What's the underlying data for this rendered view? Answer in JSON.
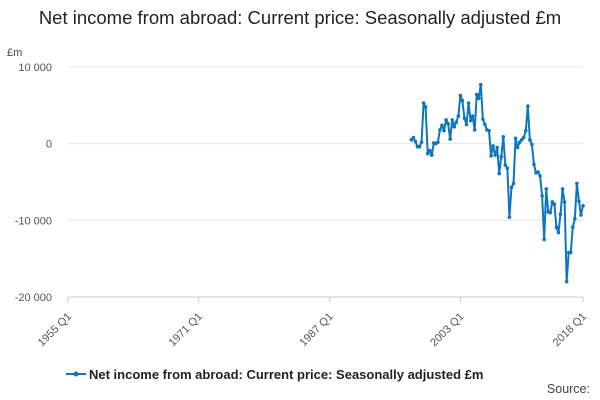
{
  "chart_data": {
    "type": "line",
    "title": "Net income from abroad: Current price: Seasonally adjusted £m",
    "ylabel": "£m",
    "xlabel": "",
    "x_unit": "quarter",
    "x_ticks": [
      "1955 Q1",
      "1971 Q1",
      "1987 Q1",
      "2003 Q1",
      "2018 Q1"
    ],
    "y_ticks": [
      "10 000",
      "0",
      "-10 000",
      "-20 000"
    ],
    "y_tick_values": [
      10000,
      0,
      -10000,
      -20000
    ],
    "xlim": [
      "1955 Q1",
      "2018 Q1"
    ],
    "ylim": [
      -20000,
      10000
    ],
    "grid": "horizontal",
    "legend_position": "bottom",
    "source_label": "Source:",
    "color": "#0d76bd",
    "series": [
      {
        "name": "Net income from abroad: Current price: Seasonally adjusted £m",
        "x": [
          "1997 Q1",
          "1997 Q2",
          "1997 Q3",
          "1997 Q4",
          "1998 Q1",
          "1998 Q2",
          "1998 Q3",
          "1998 Q4",
          "1999 Q1",
          "1999 Q2",
          "1999 Q3",
          "1999 Q4",
          "2000 Q1",
          "2000 Q2",
          "2000 Q3",
          "2000 Q4",
          "2001 Q1",
          "2001 Q2",
          "2001 Q3",
          "2001 Q4",
          "2002 Q1",
          "2002 Q2",
          "2002 Q3",
          "2002 Q4",
          "2003 Q1",
          "2003 Q2",
          "2003 Q3",
          "2003 Q4",
          "2004 Q1",
          "2004 Q2",
          "2004 Q3",
          "2004 Q4",
          "2005 Q1",
          "2005 Q2",
          "2005 Q3",
          "2005 Q4",
          "2006 Q1",
          "2006 Q2",
          "2006 Q3",
          "2006 Q4",
          "2007 Q1",
          "2007 Q2",
          "2007 Q3",
          "2007 Q4",
          "2008 Q1",
          "2008 Q2",
          "2008 Q3",
          "2008 Q4",
          "2009 Q1",
          "2009 Q2",
          "2009 Q3",
          "2009 Q4",
          "2010 Q1",
          "2010 Q2",
          "2010 Q3",
          "2010 Q4",
          "2011 Q1",
          "2011 Q2",
          "2011 Q3",
          "2011 Q4",
          "2012 Q1",
          "2012 Q2",
          "2012 Q3",
          "2012 Q4",
          "2013 Q1",
          "2013 Q2",
          "2013 Q3",
          "2013 Q4",
          "2014 Q1",
          "2014 Q2",
          "2014 Q3",
          "2014 Q4",
          "2015 Q1",
          "2015 Q2",
          "2015 Q3",
          "2015 Q4",
          "2016 Q1",
          "2016 Q2",
          "2016 Q3",
          "2016 Q4",
          "2017 Q1",
          "2017 Q2",
          "2017 Q3",
          "2017 Q4",
          "2018 Q1"
        ],
        "values": [
          500,
          800,
          300,
          -400,
          -400,
          200,
          5300,
          4800,
          -1300,
          -900,
          -1500,
          100,
          0,
          200,
          1800,
          2400,
          1700,
          3100,
          2600,
          600,
          3100,
          2200,
          2800,
          3600,
          6300,
          5600,
          3300,
          2500,
          5300,
          3000,
          3600,
          1800,
          6400,
          5900,
          7700,
          3200,
          2500,
          1800,
          1700,
          -1600,
          -300,
          -1500,
          -500,
          -3900,
          -1700,
          900,
          -2800,
          -3200,
          -9600,
          -5700,
          -5200,
          700,
          -500,
          200,
          500,
          800,
          1700,
          4900,
          500,
          -100,
          -2700,
          -3800,
          -3700,
          -4200,
          -6800,
          -12500,
          -5900,
          -8900,
          -9000,
          -7600,
          -7900,
          -10900,
          -11600,
          -9200,
          -5900,
          -7600,
          -18000,
          -14200,
          -14200,
          -10900,
          -9800,
          -5200,
          -7500,
          -9300,
          -8100
        ]
      }
    ]
  }
}
